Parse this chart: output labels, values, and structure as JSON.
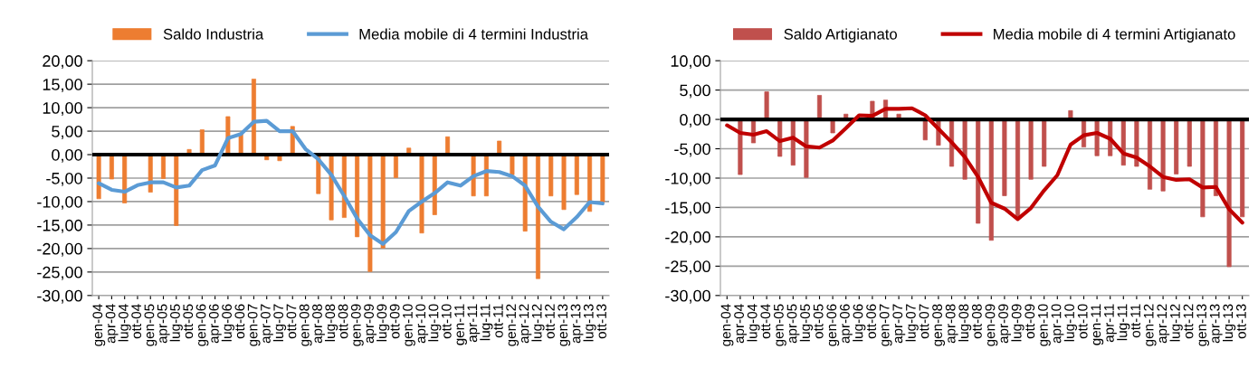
{
  "chart_data": [
    {
      "type": "bar",
      "categories": [
        "gen-04",
        "apr-04",
        "lug-04",
        "ott-04",
        "gen-05",
        "apr-05",
        "lug-05",
        "ott-05",
        "gen-06",
        "apr-06",
        "lug-06",
        "ott-06",
        "gen-07",
        "apr-07",
        "lug-07",
        "ott-07",
        "gen-08",
        "apr-08",
        "lug-08",
        "ott-08",
        "gen-09",
        "apr-09",
        "lug-09",
        "ott-09",
        "gen-10",
        "apr-10",
        "lug-10",
        "ott-10",
        "gen-11",
        "apr-11",
        "lug-11",
        "ott-11",
        "gen-12",
        "apr-12",
        "lug-12",
        "ott-12",
        "gen-13",
        "apr-13",
        "lug-13",
        "ott-13"
      ],
      "series": [
        {
          "name": "Saldo Industria",
          "color": "#ed7d31",
          "values": [
            -9.4,
            -5.2,
            -10.3,
            null,
            -8.0,
            -5.1,
            -15.1,
            1.1,
            5.3,
            0.0,
            8.1,
            4.4,
            16.1,
            -1.1,
            -1.3,
            6.0,
            0.0,
            -8.3,
            -13.9,
            -13.4,
            -17.5,
            -24.9,
            -19.9,
            -4.9,
            1.4,
            -16.7,
            -12.8,
            3.8,
            0.0,
            -8.8,
            -8.8,
            2.9,
            -4.3,
            -16.3,
            -26.4,
            -8.8,
            -11.7,
            -8.5,
            -12.1,
            -10.1
          ]
        },
        {
          "name": "Media mobile di 4 termini Industria",
          "type": "line",
          "color": "#5b9bd5",
          "values": [
            -6.1,
            -7.5,
            -7.9,
            -6.5,
            -5.9,
            -5.9,
            -7.0,
            -6.6,
            -3.3,
            -2.3,
            3.5,
            4.4,
            7.0,
            7.2,
            5.0,
            5.0,
            1.2,
            -1.0,
            -4.3,
            -8.8,
            -13.6,
            -17.2,
            -19.0,
            -16.5,
            -12.0,
            -10.0,
            -8.2,
            -5.9,
            -6.6,
            -4.6,
            -3.5,
            -3.7,
            -4.6,
            -6.6,
            -11.1,
            -14.3,
            -15.9,
            -13.3,
            -10.1,
            -10.4
          ]
        }
      ],
      "ylim": [
        -30,
        20
      ],
      "yticks": [
        {
          "value": -30,
          "label": "-30,00"
        },
        {
          "value": -25,
          "label": "-25,00"
        },
        {
          "value": -20,
          "label": "-20,00"
        },
        {
          "value": -15,
          "label": "-15,00"
        },
        {
          "value": -10,
          "label": "-10,00"
        },
        {
          "value": -5,
          "label": "-5,00"
        },
        {
          "value": 0,
          "label": "0,00"
        },
        {
          "value": 5,
          "label": "5,00"
        },
        {
          "value": 10,
          "label": "10,00"
        },
        {
          "value": 15,
          "label": "15,00"
        },
        {
          "value": 20,
          "label": "20,00"
        }
      ],
      "ref_lines": [
        {
          "axis": "y",
          "value": 0,
          "color": "#000000"
        }
      ],
      "grid": "y",
      "legend": "top"
    },
    {
      "type": "bar",
      "categories": [
        "gen-04",
        "apr-04",
        "lug-04",
        "ott-04",
        "gen-05",
        "apr-05",
        "lug-05",
        "ott-05",
        "gen-06",
        "apr-06",
        "lug-06",
        "ott-06",
        "gen-07",
        "apr-07",
        "lug-07",
        "ott-07",
        "gen-08",
        "apr-08",
        "lug-08",
        "ott-08",
        "gen-09",
        "apr-09",
        "lug-09",
        "ott-09",
        "gen-10",
        "apr-10",
        "lug-10",
        "ott-10",
        "gen-11",
        "apr-11",
        "lug-11",
        "ott-11",
        "gen-12",
        "apr-12",
        "lug-12",
        "ott-12",
        "gen-13",
        "apr-13",
        "lug-13",
        "ott-13"
      ],
      "series": [
        {
          "name": "Saldo Artigianato",
          "color": "#c0504d",
          "values": [
            0.0,
            -9.4,
            -4.0,
            4.7,
            -6.3,
            -7.8,
            -9.9,
            4.1,
            -2.3,
            0.9,
            0.0,
            3.1,
            3.3,
            0.9,
            0.0,
            -3.5,
            -4.4,
            -8.0,
            -10.2,
            -17.7,
            -20.6,
            -13.0,
            -17.0,
            -10.2,
            -8.0,
            0.0,
            1.5,
            -4.7,
            -6.2,
            -6.2,
            -7.8,
            -8.0,
            -11.9,
            -12.2,
            -9.3,
            -8.0,
            -16.6,
            -13.0,
            -25.1,
            -16.6
          ]
        },
        {
          "name": "Media mobile di 4 termini Artigianato",
          "type": "line",
          "color": "#c00000",
          "values": [
            -1.0,
            -2.3,
            -2.6,
            -2.0,
            -3.7,
            -3.1,
            -4.6,
            -4.8,
            -3.6,
            -1.5,
            0.7,
            0.6,
            1.8,
            1.8,
            1.9,
            0.7,
            -1.6,
            -3.9,
            -6.4,
            -9.8,
            -14.2,
            -15.2,
            -17.0,
            -15.1,
            -12.1,
            -9.5,
            -4.3,
            -2.7,
            -2.3,
            -3.3,
            -5.8,
            -6.5,
            -8.0,
            -9.8,
            -10.3,
            -10.2,
            -11.6,
            -11.5,
            -15.3,
            -17.6
          ]
        }
      ],
      "ylim": [
        -30,
        10
      ],
      "yticks": [
        {
          "value": -30,
          "label": "-30,00"
        },
        {
          "value": -25,
          "label": "-25,00"
        },
        {
          "value": -20,
          "label": "-20,00"
        },
        {
          "value": -15,
          "label": "-15,00"
        },
        {
          "value": -10,
          "label": "-10,00"
        },
        {
          "value": -5,
          "label": "-5,00"
        },
        {
          "value": 0,
          "label": "0,00"
        },
        {
          "value": 5,
          "label": "5,00"
        },
        {
          "value": 10,
          "label": "10,00"
        }
      ],
      "ref_lines": [
        {
          "axis": "y",
          "value": 0,
          "color": "#000000"
        }
      ],
      "grid": "y",
      "legend": "top"
    }
  ]
}
